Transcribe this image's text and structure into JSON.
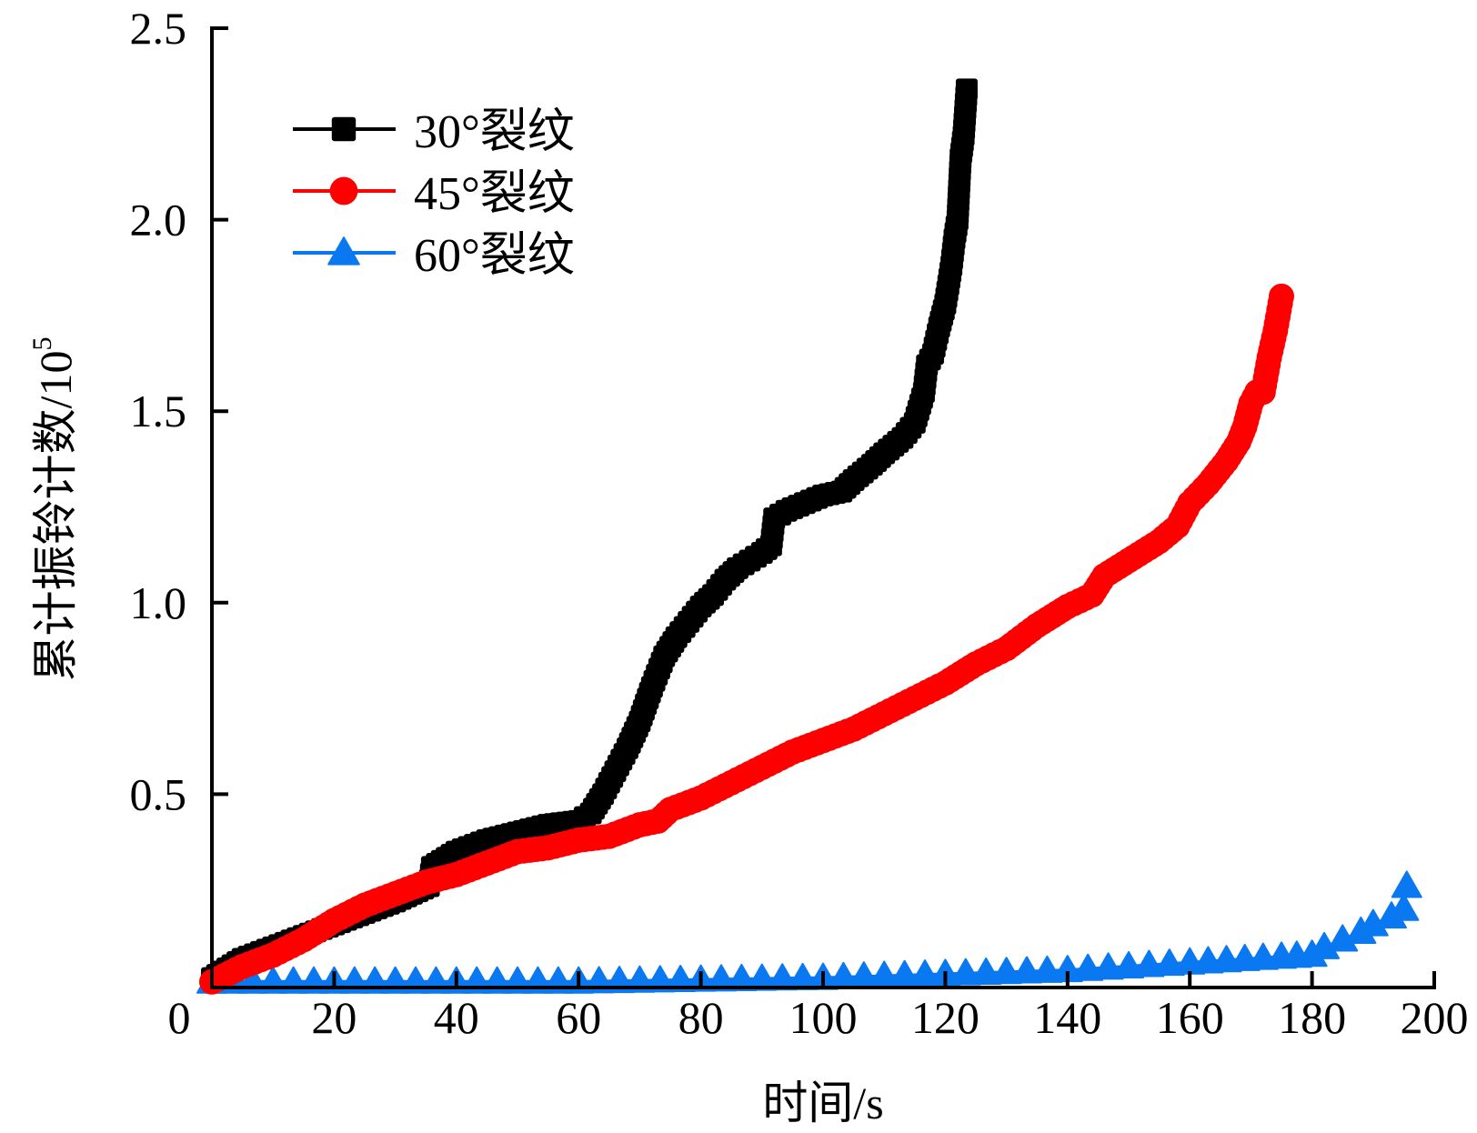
{
  "chart_data": {
    "type": "line",
    "title": "",
    "xlabel": "时间/s",
    "ylabel": "累计振铃计数/10",
    "ylabel_exponent": "5",
    "xlim": [
      0,
      200
    ],
    "ylim": [
      0,
      2.5
    ],
    "x_ticks": [
      "0",
      "20",
      "40",
      "60",
      "80",
      "100",
      "120",
      "140",
      "160",
      "180",
      "200"
    ],
    "y_ticks": [
      "0.5",
      "1.0",
      "1.5",
      "2.0",
      "2.5"
    ],
    "grid": false,
    "legend_position": "top-left",
    "series": [
      {
        "name": "30°裂纹",
        "color": "#000000",
        "marker": "square",
        "x": [
          0,
          5,
          10,
          20,
          30,
          35.5,
          36,
          40,
          45,
          50,
          55,
          60,
          62,
          64,
          66,
          68,
          70,
          72,
          74,
          76,
          78,
          80,
          82,
          84,
          86,
          88,
          90,
          91.5,
          92,
          94,
          97,
          100,
          103,
          105,
          108,
          110,
          113,
          115,
          116.5,
          117,
          118,
          119,
          120,
          121,
          121.5,
          122,
          122.5,
          123,
          123.5
        ],
        "y": [
          0.02,
          0.07,
          0.1,
          0.16,
          0.22,
          0.26,
          0.31,
          0.35,
          0.38,
          0.4,
          0.42,
          0.43,
          0.45,
          0.5,
          0.56,
          0.62,
          0.69,
          0.78,
          0.86,
          0.91,
          0.95,
          0.99,
          1.02,
          1.06,
          1.09,
          1.11,
          1.13,
          1.15,
          1.22,
          1.24,
          1.26,
          1.28,
          1.29,
          1.32,
          1.36,
          1.39,
          1.43,
          1.47,
          1.55,
          1.62,
          1.65,
          1.72,
          1.78,
          1.88,
          1.95,
          2.0,
          2.16,
          2.22,
          2.34
        ]
      },
      {
        "name": "45°裂纹",
        "color": "#ff0000",
        "marker": "circle",
        "x": [
          0,
          5,
          10,
          15,
          20,
          25,
          30,
          35,
          40,
          45,
          50,
          55,
          60,
          65,
          70,
          73,
          75,
          80,
          85,
          90,
          95,
          100,
          105,
          110,
          115,
          120,
          125,
          130,
          135,
          140,
          144,
          146,
          150,
          155,
          158,
          160,
          163,
          166,
          168,
          169,
          170,
          171,
          172,
          173,
          174,
          175
        ],
        "y": [
          0.01,
          0.05,
          0.08,
          0.12,
          0.17,
          0.21,
          0.24,
          0.27,
          0.29,
          0.32,
          0.35,
          0.36,
          0.38,
          0.39,
          0.42,
          0.43,
          0.46,
          0.49,
          0.53,
          0.57,
          0.61,
          0.64,
          0.67,
          0.71,
          0.75,
          0.79,
          0.84,
          0.88,
          0.94,
          0.99,
          1.02,
          1.07,
          1.11,
          1.16,
          1.2,
          1.26,
          1.31,
          1.37,
          1.42,
          1.46,
          1.52,
          1.55,
          1.55,
          1.64,
          1.71,
          1.8
        ]
      },
      {
        "name": "60°裂纹",
        "color": "#0a78f0",
        "marker": "triangle",
        "x": [
          0,
          20,
          40,
          60,
          80,
          100,
          120,
          140,
          160,
          175,
          180,
          182,
          185,
          188,
          190,
          193,
          195,
          195.5
        ],
        "y": [
          0.01,
          0.01,
          0.01,
          0.01,
          0.015,
          0.02,
          0.03,
          0.04,
          0.06,
          0.075,
          0.08,
          0.1,
          0.12,
          0.14,
          0.16,
          0.18,
          0.2,
          0.26
        ]
      }
    ]
  }
}
